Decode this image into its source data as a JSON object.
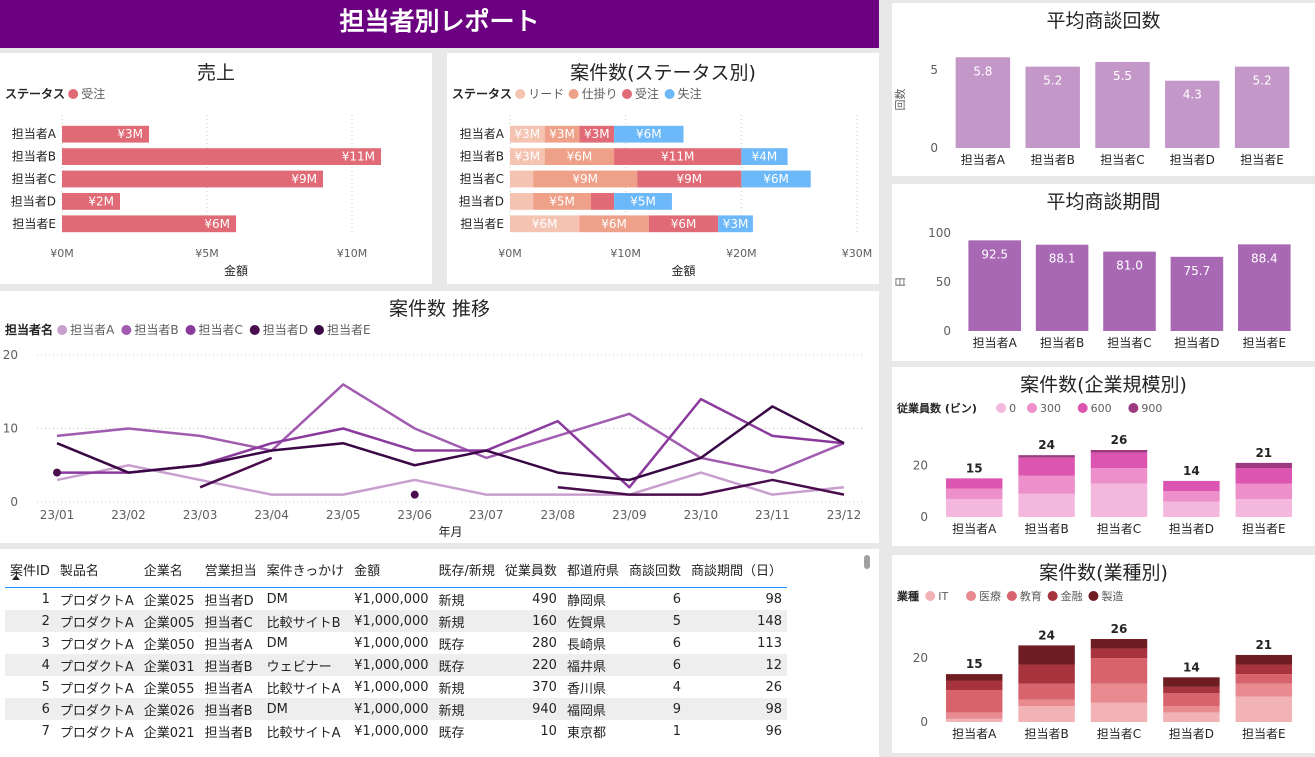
{
  "header": {
    "title": "担当者別レポート"
  },
  "chart_data": [
    {
      "id": "sales",
      "type": "bar",
      "orientation": "horizontal",
      "title": "売上",
      "legend_title": "ステータス",
      "legend_position": "top-left",
      "categories": [
        "担当者A",
        "担当者B",
        "担当者C",
        "担当者D",
        "担当者E"
      ],
      "series": [
        {
          "name": "受注",
          "color": "#e06a75",
          "values": [
            3,
            11,
            9,
            2,
            6
          ],
          "labels": [
            "¥3M",
            "¥11M",
            "¥9M",
            "¥2M",
            "¥6M"
          ]
        }
      ],
      "xlim": [
        0,
        12
      ],
      "xticks": [
        0,
        5,
        10
      ],
      "xtick_labels": [
        "¥0M",
        "¥5M",
        "¥10M"
      ],
      "xlabel": "金額",
      "grid": true
    },
    {
      "id": "status",
      "type": "bar",
      "orientation": "horizontal",
      "stacked": true,
      "title": "案件数(ステータス別)",
      "legend_title": "ステータス",
      "legend_position": "top-left",
      "categories": [
        "担当者A",
        "担当者B",
        "担当者C",
        "担当者D",
        "担当者E"
      ],
      "series": [
        {
          "name": "リード",
          "color": "#f5c3b2",
          "values": [
            3,
            3,
            2,
            2,
            6
          ],
          "labels": [
            "¥3M",
            "¥3M",
            "",
            "",
            "¥6M"
          ]
        },
        {
          "name": "仕掛り",
          "color": "#eea088",
          "values": [
            3,
            6,
            9,
            5,
            6
          ],
          "labels": [
            "¥3M",
            "¥6M",
            "¥9M",
            "¥5M",
            "¥6M"
          ]
        },
        {
          "name": "受注",
          "color": "#e06a75",
          "values": [
            3,
            11,
            9,
            2,
            6
          ],
          "labels": [
            "¥3M",
            "¥11M",
            "¥9M",
            "",
            "¥6M"
          ]
        },
        {
          "name": "失注",
          "color": "#6cb8f8",
          "values": [
            6,
            4,
            6,
            5,
            3
          ],
          "labels": [
            "¥6M",
            "¥4M",
            "¥6M",
            "¥5M",
            "¥3M"
          ]
        }
      ],
      "xlim": [
        0,
        30
      ],
      "xticks": [
        0,
        10,
        20,
        30
      ],
      "xtick_labels": [
        "¥0M",
        "¥10M",
        "¥20M",
        "¥30M"
      ],
      "xlabel": "金額",
      "grid": true
    },
    {
      "id": "trend",
      "type": "line",
      "title": "案件数 推移",
      "legend_title": "担当者名",
      "legend_position": "top-left",
      "x": [
        "23/01",
        "23/02",
        "23/03",
        "23/04",
        "23/05",
        "23/06",
        "23/07",
        "23/08",
        "23/09",
        "23/10",
        "23/11",
        "23/12"
      ],
      "xlabel": "年月",
      "ylim": [
        0,
        20
      ],
      "yticks": [
        0,
        10,
        20
      ],
      "grid": true,
      "series": [
        {
          "name": "担当者A",
          "color": "#c89fce",
          "values": [
            3,
            5,
            3,
            1,
            1,
            3,
            1,
            1,
            1,
            4,
            1,
            2
          ]
        },
        {
          "name": "担当者B",
          "color": "#a15cb0",
          "values": [
            9,
            10,
            9,
            7,
            16,
            10,
            6,
            9,
            12,
            6,
            4,
            8
          ]
        },
        {
          "name": "担当者C",
          "color": "#8a3a9c",
          "values": [
            4,
            4,
            5,
            8,
            10,
            7,
            7,
            11,
            2,
            14,
            9,
            8
          ]
        },
        {
          "name": "担当者D",
          "color": "#4a0e4e",
          "values": [
            4,
            null,
            2,
            6,
            null,
            1,
            null,
            2,
            1,
            1,
            3,
            1
          ]
        },
        {
          "name": "担当者E",
          "color": "#3a0845",
          "values": [
            8,
            4,
            5,
            7,
            8,
            5,
            7,
            4,
            3,
            6,
            13,
            8
          ]
        }
      ]
    },
    {
      "id": "avg_count",
      "type": "bar",
      "title": "平均商談回数",
      "ylabel": "回数",
      "categories": [
        "担当者A",
        "担当者B",
        "担当者C",
        "担当者D",
        "担当者E"
      ],
      "values": [
        5.8,
        5.2,
        5.5,
        4.3,
        5.2
      ],
      "labels": [
        "5.8",
        "5.2",
        "5.5",
        "4.3",
        "5.2"
      ],
      "color": "#c497c9",
      "ylim": [
        0,
        6.2
      ],
      "yticks": [
        0,
        5
      ]
    },
    {
      "id": "avg_period",
      "type": "bar",
      "title": "平均商談期間",
      "ylabel": "日",
      "categories": [
        "担当者A",
        "担当者B",
        "担当者C",
        "担当者D",
        "担当者E"
      ],
      "values": [
        92.5,
        88.1,
        81.0,
        75.7,
        88.4
      ],
      "labels": [
        "92.5",
        "88.1",
        "81.0",
        "75.7",
        "88.4"
      ],
      "color": "#a868b4",
      "ylim": [
        0,
        100
      ],
      "yticks": [
        0,
        50,
        100
      ]
    },
    {
      "id": "size",
      "type": "bar",
      "stacked": true,
      "title": "案件数(企業規模別)",
      "legend_title": "従業員数 (ビン)",
      "legend_position": "top-left",
      "categories": [
        "担当者A",
        "担当者B",
        "担当者C",
        "担当者D",
        "担当者E"
      ],
      "series": [
        {
          "name": "0",
          "color": "#f4b8de",
          "values": [
            7,
            9,
            13,
            6,
            7
          ]
        },
        {
          "name": "300",
          "color": "#ec8fcb",
          "values": [
            4,
            7,
            6,
            4,
            6
          ]
        },
        {
          "name": "600",
          "color": "#dc55b0",
          "values": [
            4,
            7,
            6,
            4,
            6
          ]
        },
        {
          "name": "900",
          "color": "#9e3a82",
          "values": [
            0,
            1,
            1,
            0,
            2
          ]
        }
      ],
      "totals": [
        15,
        24,
        26,
        14,
        21
      ],
      "ylim": [
        0,
        26
      ],
      "yticks": [
        0,
        20
      ]
    },
    {
      "id": "industry",
      "type": "bar",
      "stacked": true,
      "title": "案件数(業種別)",
      "legend_title": "業種",
      "legend_position": "top-left",
      "categories": [
        "担当者A",
        "担当者B",
        "担当者C",
        "担当者D",
        "担当者E"
      ],
      "series": [
        {
          "name": "IT",
          "color": "#f2b3b6",
          "values": [
            1,
            5,
            6,
            3,
            8
          ]
        },
        {
          "name": "医療",
          "color": "#e88a90",
          "values": [
            2,
            2,
            6,
            2,
            4
          ]
        },
        {
          "name": "教育",
          "color": "#d9636c",
          "values": [
            7,
            5,
            8,
            4,
            3
          ]
        },
        {
          "name": "金融",
          "color": "#a7343d",
          "values": [
            3,
            6,
            3,
            2,
            3
          ]
        },
        {
          "name": "製造",
          "color": "#6e1d22",
          "values": [
            2,
            6,
            3,
            3,
            3
          ]
        }
      ],
      "totals": [
        15,
        24,
        26,
        14,
        21
      ],
      "ylim": [
        0,
        26
      ],
      "yticks": [
        0,
        20
      ]
    }
  ],
  "table": {
    "headers": [
      "案件ID",
      "製品名",
      "企業名",
      "営業担当",
      "案件きっかけ",
      "金額",
      "既存/新規",
      "従業員数",
      "都道府県",
      "商談回数",
      "商談期間（日）"
    ],
    "rows": [
      [
        "1",
        "プロダクトA",
        "企業025",
        "担当者D",
        "DM",
        "¥1,000,000",
        "新規",
        "490",
        "静岡県",
        "6",
        "98"
      ],
      [
        "2",
        "プロダクトA",
        "企業005",
        "担当者C",
        "比較サイトB",
        "¥1,000,000",
        "新規",
        "160",
        "佐賀県",
        "5",
        "148"
      ],
      [
        "3",
        "プロダクトA",
        "企業050",
        "担当者A",
        "DM",
        "¥1,000,000",
        "既存",
        "280",
        "長崎県",
        "6",
        "113"
      ],
      [
        "4",
        "プロダクトA",
        "企業031",
        "担当者B",
        "ウェビナー",
        "¥1,000,000",
        "既存",
        "220",
        "福井県",
        "6",
        "12"
      ],
      [
        "5",
        "プロダクトA",
        "企業055",
        "担当者A",
        "比較サイトA",
        "¥1,000,000",
        "新規",
        "370",
        "香川県",
        "4",
        "26"
      ],
      [
        "6",
        "プロダクトA",
        "企業026",
        "担当者B",
        "DM",
        "¥1,000,000",
        "新規",
        "940",
        "福岡県",
        "9",
        "98"
      ],
      [
        "7",
        "プロダクトA",
        "企業021",
        "担当者B",
        "比較サイトA",
        "¥1,000,000",
        "既存",
        "10",
        "東京都",
        "1",
        "96"
      ]
    ]
  }
}
